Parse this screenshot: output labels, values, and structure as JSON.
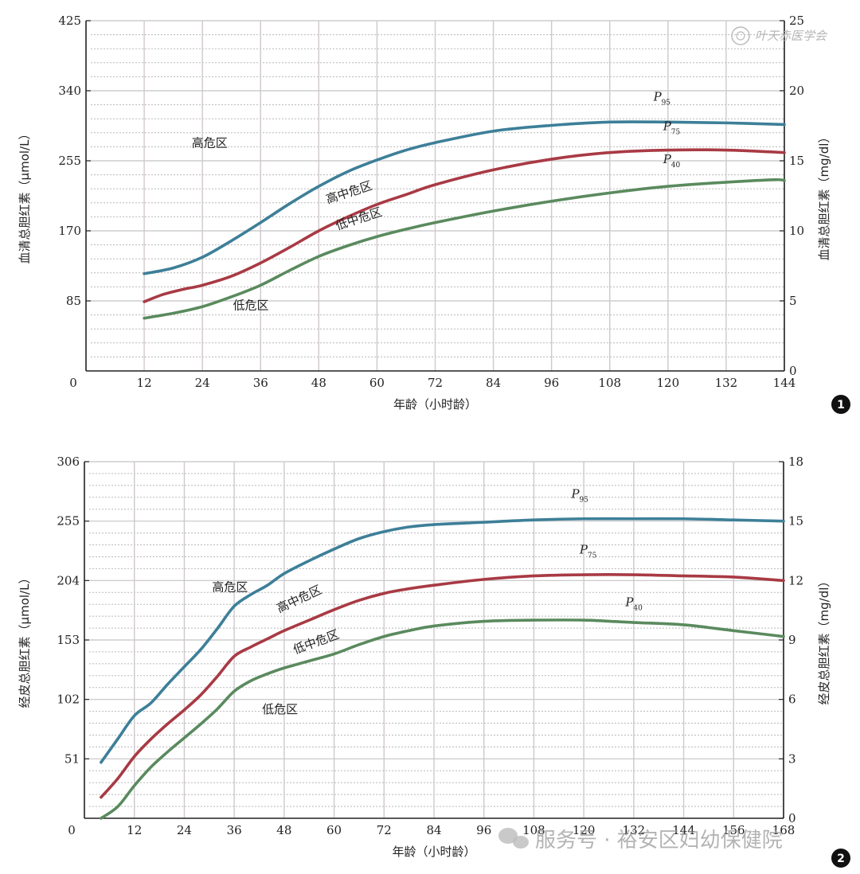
{
  "watermark": {
    "top_right": "叶天赤医学会",
    "bottom": "服务号 · 裕安区妇幼保健院"
  },
  "colors": {
    "p95": "#3d7f98",
    "p75": "#a83a44",
    "p40": "#5a8a5e"
  },
  "chart_data": [
    {
      "type": "line",
      "badge": "1",
      "xlabel": "年龄（小时龄）",
      "ylabel_left": "血清总胆红素（μmol/L）",
      "ylabel_right": "血清总胆红素（mg/dl）",
      "xlim": [
        0,
        144
      ],
      "ylim": [
        0,
        425
      ],
      "ylim_right": [
        0,
        25
      ],
      "x_ticks": [
        0,
        12,
        24,
        36,
        48,
        60,
        72,
        84,
        96,
        108,
        120,
        132,
        144
      ],
      "y_ticks_left": [
        85,
        170,
        255,
        340,
        425
      ],
      "y_ticks_right": [
        0,
        5,
        10,
        15,
        20,
        25
      ],
      "grid": true,
      "series": [
        {
          "name": "P95",
          "label": "P",
          "sub": "95",
          "label_pos": [
            117,
            328
          ],
          "x": [
            12,
            18,
            24,
            30,
            36,
            42,
            48,
            54,
            60,
            66,
            72,
            84,
            96,
            108,
            120,
            132,
            144
          ],
          "y": [
            118,
            125,
            138,
            158,
            180,
            203,
            224,
            242,
            256,
            268,
            277,
            291,
            298,
            302,
            302,
            301,
            299
          ]
        },
        {
          "name": "P75",
          "label": "P",
          "sub": "75",
          "label_pos": [
            119,
            292
          ],
          "x": [
            12,
            16,
            20,
            24,
            30,
            36,
            42,
            48,
            54,
            60,
            66,
            72,
            84,
            96,
            108,
            120,
            132,
            144
          ],
          "y": [
            84,
            93,
            99,
            104,
            115,
            131,
            150,
            170,
            187,
            202,
            214,
            226,
            244,
            257,
            265,
            268,
            268,
            265
          ]
        },
        {
          "name": "P40",
          "label": "P",
          "sub": "40",
          "label_pos": [
            119,
            252
          ],
          "x": [
            12,
            18,
            24,
            30,
            36,
            42,
            48,
            54,
            60,
            66,
            72,
            84,
            96,
            108,
            120,
            132,
            142,
            144
          ],
          "y": [
            64,
            70,
            78,
            90,
            104,
            122,
            139,
            152,
            163,
            172,
            180,
            194,
            206,
            216,
            224,
            229,
            232,
            231
          ]
        }
      ],
      "zones": [
        {
          "text": "高危区",
          "x": 25.5,
          "y": 272,
          "rotate": 0
        },
        {
          "text": "高中危区",
          "x": 54.5,
          "y": 212,
          "rotate": -18
        },
        {
          "text": "低中危区",
          "x": 56.5,
          "y": 180,
          "rotate": -18
        },
        {
          "text": "低危区",
          "x": 34,
          "y": 75,
          "rotate": 0
        }
      ]
    },
    {
      "type": "line",
      "badge": "2",
      "xlabel": "年龄（小时龄）",
      "ylabel_left": "经皮总胆红素（μmol/L）",
      "ylabel_right": "经皮总胆红素（mg/dl）",
      "xlim": [
        0,
        168
      ],
      "ylim": [
        0,
        306
      ],
      "ylim_right": [
        0,
        18
      ],
      "x_ticks": [
        0,
        12,
        24,
        36,
        48,
        60,
        72,
        84,
        96,
        108,
        120,
        132,
        144,
        156,
        168
      ],
      "y_ticks_left": [
        51,
        102,
        153,
        204,
        255,
        306
      ],
      "y_ticks_right": [
        0,
        3,
        6,
        9,
        12,
        15,
        18
      ],
      "grid": true,
      "series": [
        {
          "name": "P95",
          "label": "P",
          "sub": "95",
          "label_pos": [
            117,
            275
          ],
          "x": [
            4,
            8,
            12,
            16,
            20,
            24,
            28,
            32,
            36,
            40,
            44,
            48,
            54,
            60,
            66,
            72,
            78,
            84,
            96,
            108,
            120,
            132,
            144,
            156,
            168
          ],
          "y": [
            48,
            68,
            88,
            99,
            115,
            130,
            145,
            163,
            182,
            192,
            200,
            210,
            221,
            231,
            240,
            246,
            250,
            252,
            254,
            256,
            257,
            257,
            257,
            256,
            255
          ]
        },
        {
          "name": "P75",
          "label": "P",
          "sub": "75",
          "label_pos": [
            119,
            227
          ],
          "x": [
            4,
            8,
            12,
            16,
            20,
            24,
            28,
            32,
            36,
            40,
            44,
            48,
            54,
            60,
            66,
            72,
            78,
            84,
            96,
            108,
            120,
            132,
            144,
            156,
            168
          ],
          "y": [
            18,
            34,
            53,
            68,
            81,
            93,
            106,
            122,
            139,
            147,
            154,
            161,
            170,
            179,
            187,
            193,
            197,
            200,
            205,
            208,
            209,
            209,
            208,
            207,
            204
          ]
        },
        {
          "name": "P40",
          "label": "P",
          "sub": "40",
          "label_pos": [
            130,
            182
          ],
          "x": [
            4,
            8,
            12,
            16,
            20,
            24,
            28,
            32,
            36,
            40,
            44,
            48,
            54,
            60,
            66,
            72,
            78,
            84,
            96,
            108,
            120,
            132,
            144,
            156,
            168
          ],
          "y": [
            0,
            10,
            28,
            44,
            57,
            69,
            81,
            94,
            109,
            118,
            124,
            129,
            135,
            141,
            149,
            156,
            161,
            165,
            169,
            170,
            170,
            168,
            166,
            161,
            156
          ]
        }
      ],
      "zones": [
        {
          "text": "高危区",
          "x": 35,
          "y": 195,
          "rotate": 0
        },
        {
          "text": "高中危区",
          "x": 52,
          "y": 185,
          "rotate": -25
        },
        {
          "text": "低中危区",
          "x": 56,
          "y": 148,
          "rotate": -20
        },
        {
          "text": "低危区",
          "x": 47,
          "y": 90,
          "rotate": 0
        }
      ]
    }
  ]
}
